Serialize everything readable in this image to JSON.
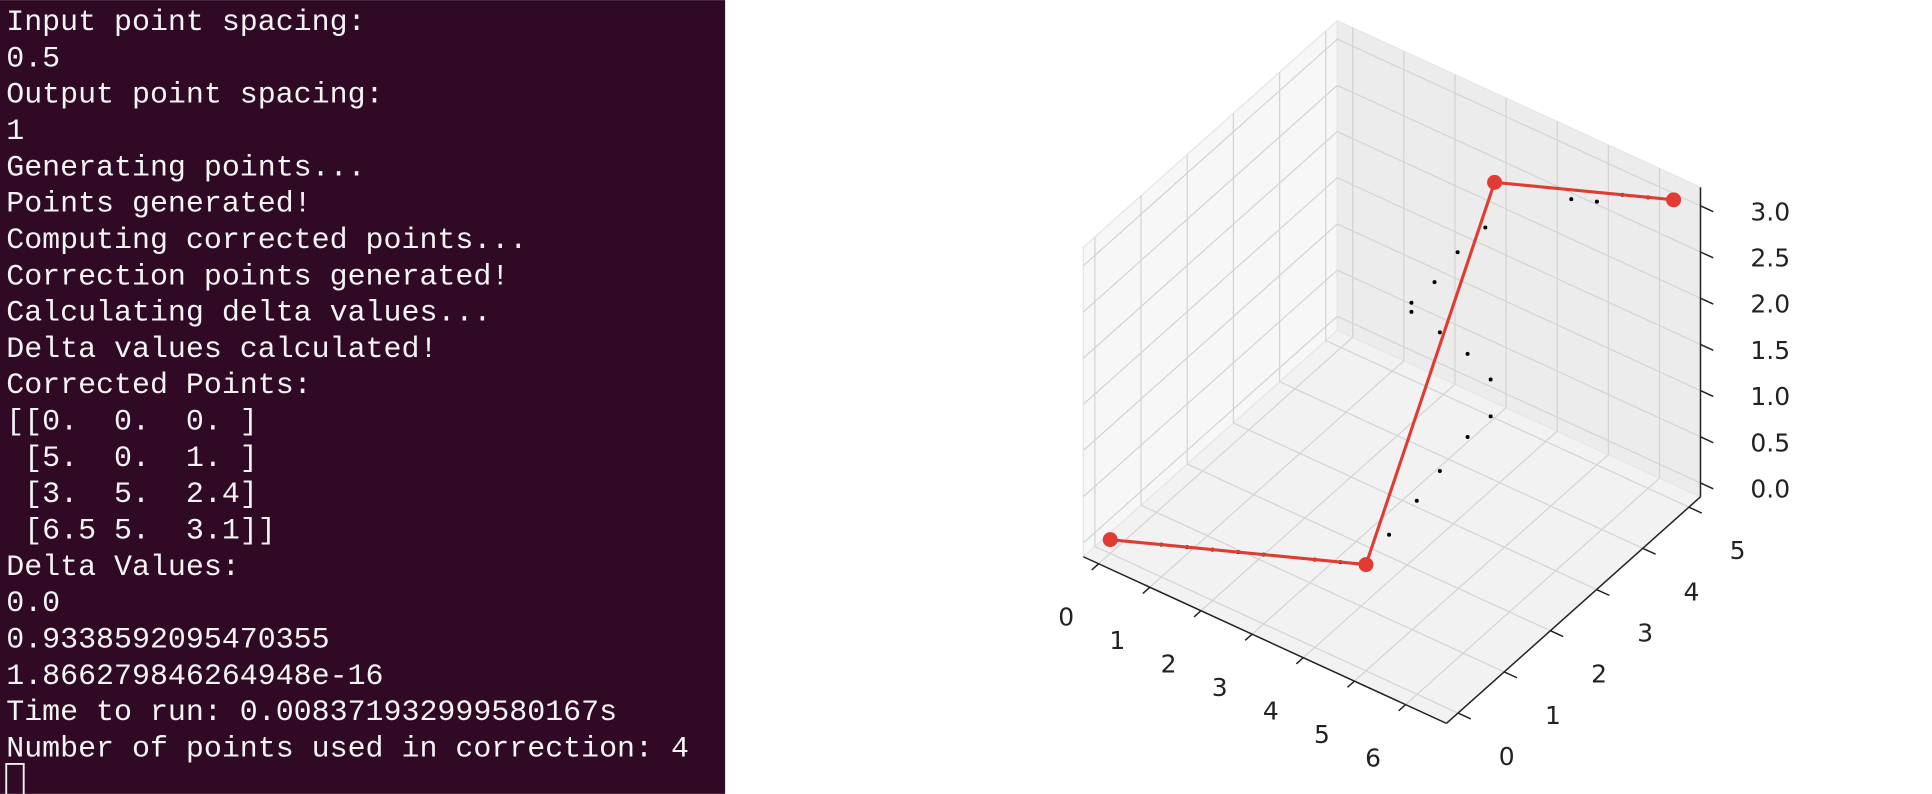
{
  "terminal": {
    "lines": [
      "Input point spacing:",
      "0.5",
      "Output point spacing:",
      "1",
      "Generating points...",
      "Points generated!",
      "Computing corrected points...",
      "Correction points generated!",
      "Calculating delta values...",
      "Delta values calculated!",
      "Corrected Points:",
      "[[0.  0.  0. ]",
      " [5.  0.  1. ]",
      " [3.  5.  2.4]",
      " [6.5 5.  3.1]]",
      "Delta Values:",
      "0.0",
      "0.9338592095470355",
      "1.866279846264948e-16",
      "Time to run: 0.008371932999580167s",
      "Number of points used in correction: 4"
    ]
  },
  "chart_data": {
    "type": "scatter3d",
    "xlim": [
      -0.3,
      6.8
    ],
    "ylim": [
      -0.25,
      5.25
    ],
    "zlim": [
      -0.15,
      3.2
    ],
    "xticks": [
      0,
      1,
      2,
      3,
      4,
      5,
      6
    ],
    "yticks": [
      0,
      1,
      2,
      3,
      4,
      5
    ],
    "zticks": [
      {
        "value": 0,
        "label": "0.0"
      },
      0.5,
      {
        "value": 1,
        "label": "1.0"
      },
      1.5,
      {
        "value": 2,
        "label": "2.0"
      },
      2.5,
      {
        "value": 3,
        "label": "3.0"
      }
    ],
    "grid": true,
    "series": [
      {
        "color": "#000000",
        "mode": "markers",
        "x": [
          1,
          1.5,
          2,
          2.5,
          3,
          4,
          4.5,
          5,
          5,
          5,
          5,
          5,
          5,
          5,
          5,
          3,
          3,
          3,
          3,
          3,
          4.5,
          5,
          5.5,
          6
        ],
        "y": [
          0,
          0,
          0,
          0,
          0,
          0,
          0,
          0.5,
          1.1,
          1.6,
          2.2,
          2.7,
          2.7,
          2.2,
          1.6,
          3.2,
          3.2,
          3.7,
          4.2,
          4.8,
          5,
          5,
          5,
          5
        ],
        "z": [
          0.2,
          0.3,
          0.4,
          0.5,
          0.6,
          0.8,
          0.9,
          1.1,
          1.2,
          1.3,
          1.4,
          1.4,
          1.8,
          2.3,
          2.8,
          1.8,
          1.9,
          1.9,
          2,
          2,
          2.6,
          2.7,
          2.9,
          3
        ]
      },
      {
        "color": "#e03c31",
        "mode": "lines+markers",
        "x": [
          0,
          5,
          3,
          6.5
        ],
        "y": [
          0,
          0,
          5,
          5
        ],
        "z": [
          0,
          1,
          2.4,
          3.1
        ]
      }
    ]
  }
}
